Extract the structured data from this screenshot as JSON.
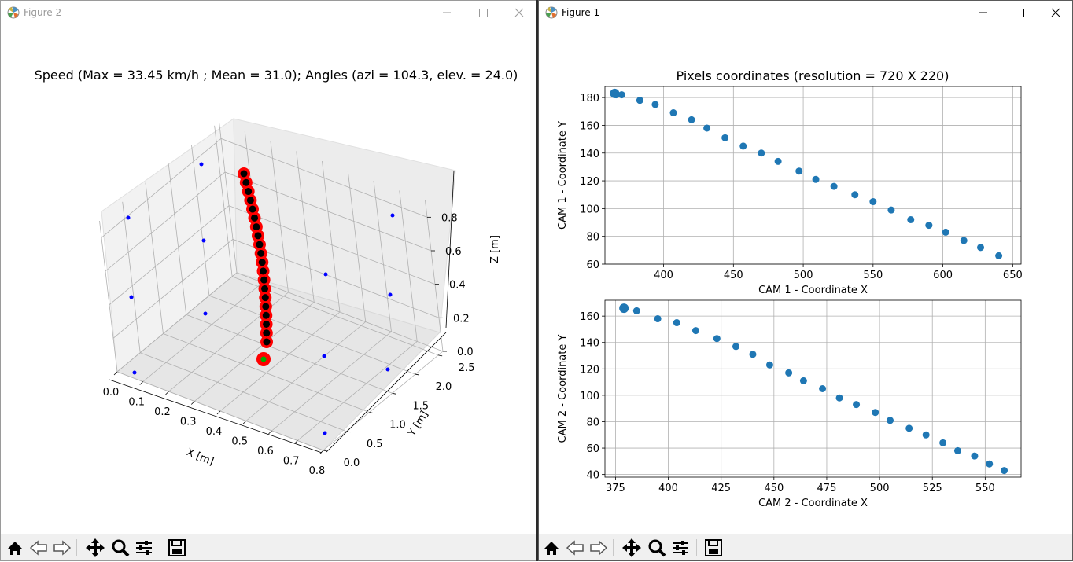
{
  "figure2": {
    "window_title": "Figure 2",
    "title": "Speed (Max = 33.45 km/h ; Mean = 31.0); Angles (azi = 104.3, elev. = 24.0)",
    "x_label": "X [m]",
    "y_label": "Y [m]",
    "z_label": "Z [m]",
    "x_ticks": [
      "0.0",
      "0.1",
      "0.2",
      "0.3",
      "0.4",
      "0.5",
      "0.6",
      "0.7",
      "0.8"
    ],
    "y_ticks": [
      "0.0",
      "0.5",
      "1.0",
      "1.5",
      "2.0",
      "2.5"
    ],
    "z_ticks": [
      "0.0",
      "0.2",
      "0.4",
      "0.6",
      "0.8"
    ]
  },
  "figure1": {
    "window_title": "Figure 1",
    "title": "Pixels coordinates (resolution = 720 X 220)"
  },
  "toolbar": [
    "home-icon",
    "back-icon",
    "forward-icon",
    "pan-icon",
    "zoom-icon",
    "configure-subplots-icon",
    "save-icon"
  ],
  "colors": {
    "trajectory": "#ff0000",
    "trajectory_core": "#000000",
    "start_point": "#00aa00",
    "camera_markers": "#0000ff",
    "scatter": "#1f77b4"
  },
  "chart_data": [
    {
      "type": "scatter",
      "title": "Speed (Max = 33.45 km/h ; Mean = 31.0); Angles (azi = 104.3, elev. = 24.0)",
      "xlabel": "X [m]",
      "ylabel": "Y [m]",
      "zlabel": "Z [m]",
      "xlim": [
        0.0,
        0.8
      ],
      "ylim": [
        0.0,
        2.5
      ],
      "zlim": [
        0.0,
        0.8
      ],
      "grid": true,
      "series": [
        {
          "x": [
            0.3,
            0.3,
            0.3,
            0.3,
            0.3,
            0.3,
            0.3,
            0.3,
            0.3,
            0.3,
            0.3,
            0.3,
            0.3,
            0.3,
            0.3,
            0.3,
            0.3,
            0.3,
            0.3,
            0.3
          ],
          "y": [
            2.0,
            2.0,
            2.0,
            2.0,
            2.0,
            2.0,
            2.0,
            2.0,
            2.0,
            2.0,
            2.0,
            2.0,
            2.0,
            2.0,
            2.0,
            2.0,
            2.0,
            2.0,
            2.0,
            2.0
          ],
          "z": [
            0.88,
            0.84,
            0.8,
            0.75,
            0.71,
            0.67,
            0.63,
            0.59,
            0.54,
            0.5,
            0.46,
            0.42,
            0.38,
            0.33,
            0.29,
            0.25,
            0.21,
            0.17,
            0.12,
            0.08
          ]
        }
      ],
      "markers": {
        "x": [
          0.0,
          0.0,
          0.0,
          0.0,
          0.0,
          0.0,
          0.8,
          0.8,
          0.8,
          0.8,
          0.8,
          0.8
        ],
        "y": [
          0.0,
          1.0,
          2.5,
          0.0,
          1.0,
          2.5,
          0.0,
          1.0,
          2.5,
          0.0,
          1.0,
          2.5
        ],
        "z": [
          0.0,
          0.0,
          0.0,
          0.6,
          0.6,
          0.6,
          0.0,
          0.0,
          0.0,
          0.6,
          0.6,
          0.6
        ]
      }
    },
    {
      "type": "scatter",
      "xlabel": "CAM 1 - Coordinate X",
      "ylabel": "CAM 1 - Coordinate Y",
      "xlim": [
        358,
        656
      ],
      "ylim": [
        60,
        188
      ],
      "xticks": [
        400,
        450,
        500,
        550,
        600,
        650
      ],
      "yticks": [
        60,
        80,
        100,
        120,
        140,
        160,
        180
      ],
      "grid": true,
      "first_point": {
        "x": 365,
        "y": 183
      },
      "x": [
        366,
        370,
        383,
        394,
        407,
        420,
        431,
        444,
        457,
        470,
        482,
        497,
        509,
        522,
        537,
        550,
        563,
        577,
        590,
        602,
        615,
        627,
        640
      ],
      "y": [
        182,
        182,
        178,
        175,
        169,
        164,
        158,
        151,
        145,
        140,
        134,
        127,
        121,
        116,
        110,
        105,
        99,
        92,
        88,
        83,
        77,
        72,
        66
      ]
    },
    {
      "type": "scatter",
      "xlabel": "CAM 2 - Coordinate X",
      "ylabel": "CAM 2 - Coordinate Y",
      "xlim": [
        370,
        567
      ],
      "ylim": [
        38,
        172
      ],
      "xticks": [
        375,
        400,
        425,
        450,
        475,
        500,
        525,
        550
      ],
      "yticks": [
        40,
        60,
        80,
        100,
        120,
        140,
        160
      ],
      "grid": true,
      "first_point": {
        "x": 379,
        "y": 166
      },
      "x": [
        379,
        385,
        395,
        404,
        413,
        423,
        432,
        440,
        448,
        457,
        464,
        473,
        481,
        489,
        498,
        505,
        514,
        522,
        530,
        537,
        545,
        552,
        559
      ],
      "y": [
        166,
        164,
        158,
        155,
        149,
        143,
        137,
        131,
        123,
        117,
        111,
        105,
        98,
        93,
        87,
        81,
        75,
        70,
        64,
        58,
        54,
        48,
        43
      ]
    }
  ]
}
